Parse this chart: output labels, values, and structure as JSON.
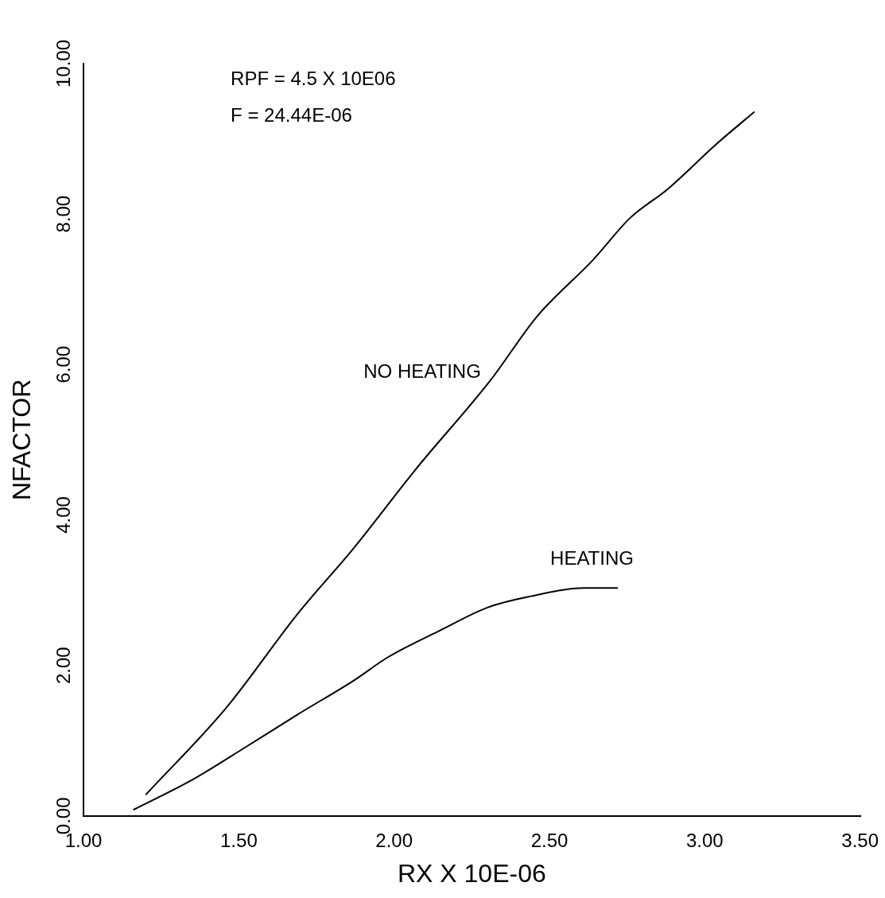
{
  "chart_data": {
    "type": "line",
    "xlabel": "RX X 10E-06",
    "ylabel": "NFACTOR",
    "annotations": [
      "RPF = 4.5 X 10E06",
      "F = 24.44E-06"
    ],
    "xlim": [
      1,
      3.5
    ],
    "ylim": [
      0,
      10
    ],
    "xticks": [
      {
        "value": 1,
        "label": "1.00"
      },
      {
        "value": 1.5,
        "label": "1.50"
      },
      {
        "value": 2,
        "label": "2.00"
      },
      {
        "value": 2.5,
        "label": "2.50"
      },
      {
        "value": 3,
        "label": "3.00"
      },
      {
        "value": 3.5,
        "label": "3.50"
      }
    ],
    "yticks": [
      {
        "value": 0,
        "label": "0.00"
      },
      {
        "value": 2,
        "label": "2.00"
      },
      {
        "value": 4,
        "label": "4.00"
      },
      {
        "value": 6,
        "label": "6.00"
      },
      {
        "value": 8,
        "label": "8.00"
      },
      {
        "value": 10,
        "label": "10.00"
      }
    ],
    "grid": false,
    "legend": false,
    "marker": "none",
    "line_style": "solid",
    "series": [
      {
        "name": "NO HEATING",
        "color": "#000000",
        "x": [
          1.2,
          1.46,
          1.69,
          1.87,
          2.07,
          2.31,
          2.46,
          2.64,
          2.76,
          2.88,
          3.04,
          3.16
        ],
        "values": [
          0.28,
          1.44,
          2.69,
          3.56,
          4.61,
          5.79,
          6.64,
          7.39,
          7.95,
          8.33,
          8.94,
          9.36
        ]
      },
      {
        "name": "HEATING",
        "color": "#000000",
        "x": [
          1.16,
          1.35,
          1.52,
          1.69,
          1.87,
          1.98,
          2.15,
          2.3,
          2.44,
          2.61,
          2.72
        ],
        "values": [
          0.08,
          0.48,
          0.91,
          1.35,
          1.8,
          2.11,
          2.47,
          2.77,
          2.92,
          3.03,
          3.03
        ]
      }
    ]
  }
}
